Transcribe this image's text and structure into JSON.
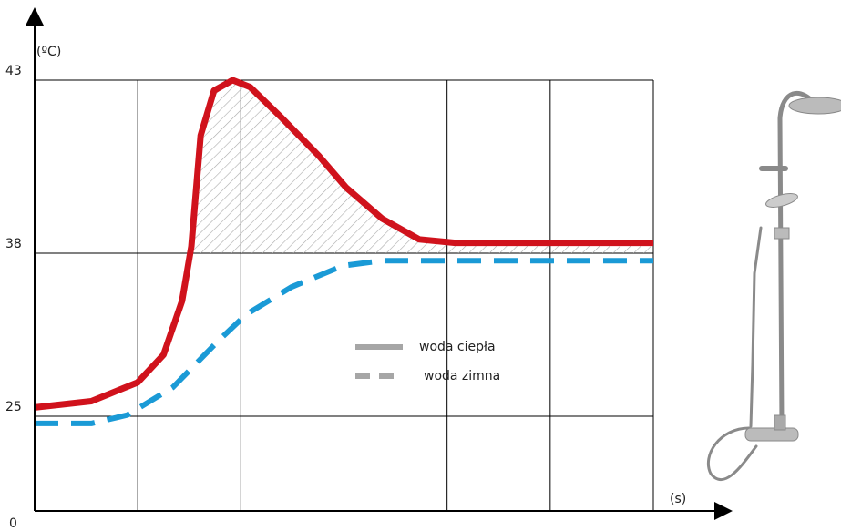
{
  "chart_data": {
    "type": "line",
    "y_label": "(ºC)",
    "x_label": "(s)",
    "ylim": [
      0,
      43
    ],
    "yticks": [
      0,
      25,
      38,
      43
    ],
    "xlim": [
      0,
      6
    ],
    "xticks": [
      1,
      2,
      3,
      4,
      5,
      6
    ],
    "grid": true,
    "hatch_above": 38,
    "legend_color": "#a6a6a6",
    "series": [
      {
        "name": "woda ciepła",
        "color": "#d0121c",
        "style": "solid",
        "x": [
          0,
          0.55,
          1.0,
          1.25,
          1.43,
          1.52,
          1.61,
          1.74,
          1.92,
          2.09,
          2.4,
          2.76,
          3.02,
          3.37,
          3.73,
          4.08,
          4.96,
          6.0
        ],
        "values": [
          25.7,
          26.2,
          27.7,
          29.9,
          34.2,
          38.2,
          41.4,
          42.7,
          43,
          42.8,
          41.9,
          40.8,
          39.9,
          39.0,
          38.4,
          38.3,
          38.3,
          38.3
        ]
      },
      {
        "name": "woda zimna",
        "color": "#1a9ad6",
        "style": "dashed",
        "x": [
          0,
          0.55,
          0.9,
          1.34,
          1.78,
          2.05,
          2.49,
          2.99,
          3.37,
          6.0
        ],
        "values": [
          23.1,
          23.1,
          25.1,
          27.3,
          31.0,
          33.1,
          35.3,
          37.0,
          37.4,
          37.4
        ]
      }
    ]
  }
}
